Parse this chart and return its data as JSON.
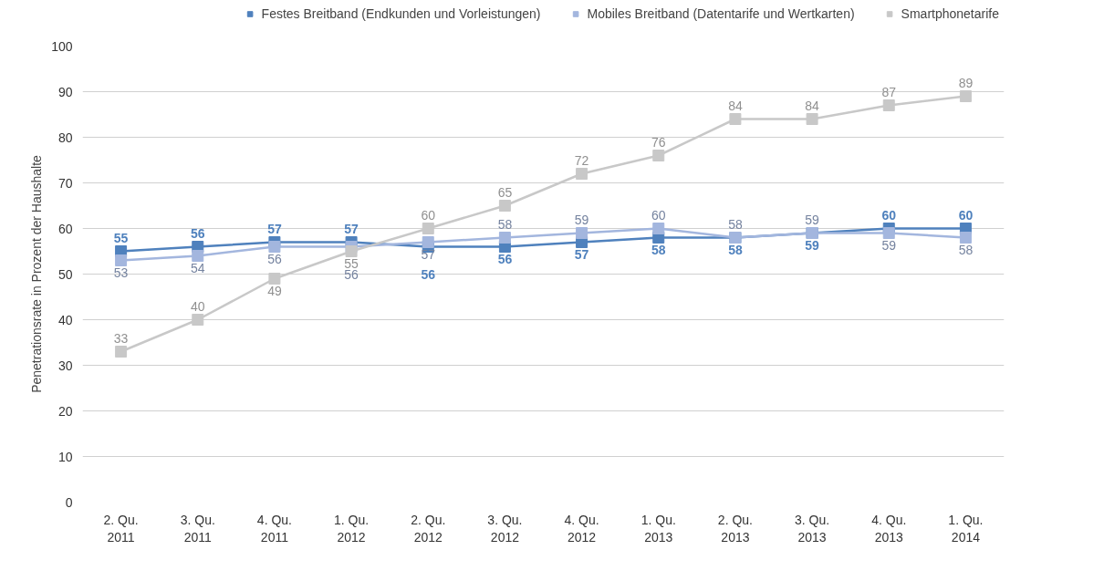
{
  "chart_data": {
    "type": "line",
    "ylabel": "Penetrationsrate in Prozent der Haushalte",
    "categories": [
      "2. Qu.\n2011",
      "3. Qu.\n2011",
      "4. Qu.\n2011",
      "1. Qu.\n2012",
      "2. Qu.\n2012",
      "3. Qu.\n2012",
      "4. Qu.\n2012",
      "1. Qu.\n2013",
      "2. Qu.\n2013",
      "3. Qu.\n2013",
      "4. Qu.\n2013",
      "1. Qu.\n2014"
    ],
    "series": [
      {
        "name": "Festes Breitband (Endkunden und Vorleistungen)",
        "color": "#4f81bd",
        "values": [
          55,
          56,
          57,
          57,
          56,
          56,
          57,
          58,
          58,
          59,
          60,
          60
        ]
      },
      {
        "name": "Mobiles Breitband (Datentarife und Wertkarten)",
        "color": "#a3b6de",
        "values": [
          53,
          54,
          56,
          56,
          57,
          58,
          59,
          60,
          58,
          59,
          59,
          58
        ]
      },
      {
        "name": "Smartphonetarife",
        "color": "#c8c8c8",
        "values": [
          33,
          40,
          49,
          55,
          60,
          65,
          72,
          76,
          84,
          84,
          87,
          89
        ]
      }
    ],
    "ylim": [
      0,
      100
    ],
    "yticks": [
      0,
      10,
      20,
      30,
      40,
      50,
      60,
      70,
      80,
      90,
      100
    ],
    "grid": "y",
    "legend": "top",
    "marker": "square",
    "line_style": "solid",
    "data_labels": true
  }
}
